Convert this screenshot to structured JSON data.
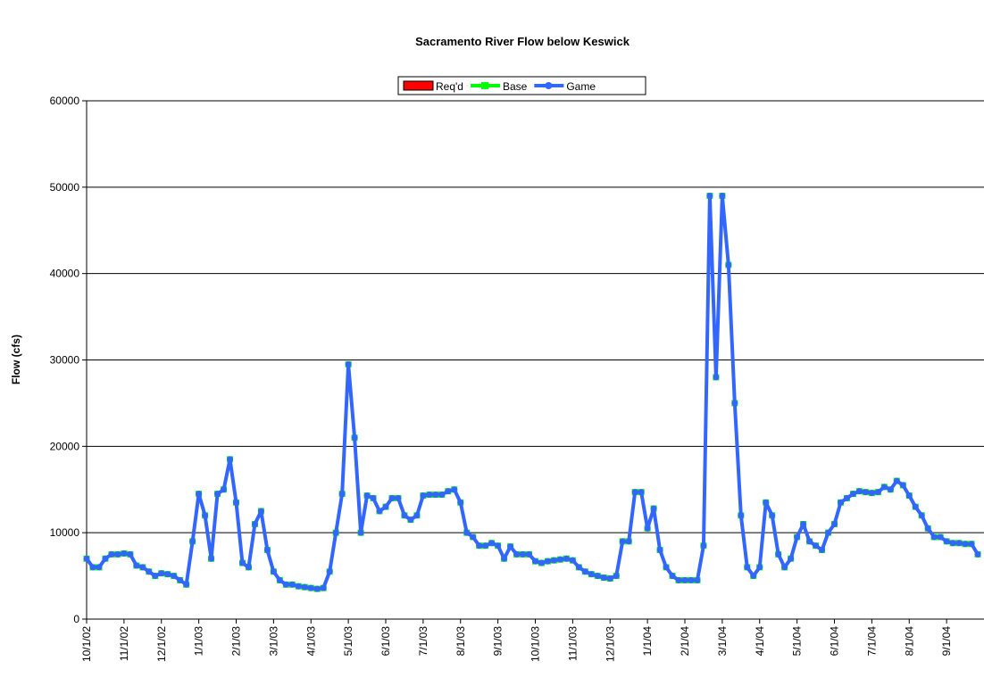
{
  "chart_data": {
    "type": "line",
    "title": "Sacramento River Flow below Keswick",
    "y_label": "Flow (cfs)",
    "ylim": [
      0,
      60000
    ],
    "yticks": [
      0,
      10000,
      20000,
      30000,
      40000,
      50000,
      60000
    ],
    "grid": true,
    "legend": "top",
    "categories": [
      "10/1/02",
      null,
      null,
      null,
      null,
      null,
      "11/1/02",
      null,
      null,
      null,
      null,
      null,
      "12/1/02",
      null,
      null,
      null,
      null,
      null,
      "1/1/03",
      null,
      null,
      null,
      null,
      null,
      "2/1/03",
      null,
      null,
      null,
      null,
      null,
      "3/1/03",
      null,
      null,
      null,
      null,
      null,
      "4/1/03",
      null,
      null,
      null,
      null,
      null,
      "5/1/03",
      null,
      null,
      null,
      null,
      null,
      "6/1/03",
      null,
      null,
      null,
      null,
      null,
      "7/1/03",
      null,
      null,
      null,
      null,
      null,
      "8/1/03",
      null,
      null,
      null,
      null,
      null,
      "9/1/03",
      null,
      null,
      null,
      null,
      null,
      "10/1/03",
      null,
      null,
      null,
      null,
      null,
      "11/1/03",
      null,
      null,
      null,
      null,
      null,
      "12/1/03",
      null,
      null,
      null,
      null,
      null,
      "1/1/04",
      null,
      null,
      null,
      null,
      null,
      "2/1/04",
      null,
      null,
      null,
      null,
      null,
      "3/1/04",
      null,
      null,
      null,
      null,
      null,
      "4/1/04",
      null,
      null,
      null,
      null,
      null,
      "5/1/04",
      null,
      null,
      null,
      null,
      null,
      "6/1/04",
      null,
      null,
      null,
      null,
      null,
      "7/1/04",
      null,
      null,
      null,
      null,
      null,
      "8/1/04",
      null,
      null,
      null,
      null,
      null,
      "9/1/04",
      null,
      null,
      null,
      null,
      null
    ],
    "series": [
      {
        "name": "Req'd",
        "color": "#ff0000",
        "marker": "rect",
        "values": [
          null,
          null,
          null,
          null,
          null,
          null,
          null,
          null,
          null,
          null,
          null,
          null,
          null,
          null,
          null,
          null,
          null,
          null,
          null,
          null,
          null,
          null,
          null,
          null,
          null,
          null,
          null,
          null,
          null,
          null,
          null,
          null,
          null,
          null,
          null,
          null,
          null,
          null,
          null,
          null,
          null,
          null,
          null,
          null,
          null,
          null,
          null,
          null,
          null,
          null,
          null,
          null,
          null,
          null,
          null,
          null,
          null,
          null,
          null,
          null,
          null,
          null,
          null,
          null,
          null,
          null,
          null,
          null,
          null,
          null,
          null,
          null,
          null,
          null,
          null,
          null,
          null,
          null,
          null,
          null,
          null,
          null,
          null,
          null,
          null,
          null,
          null,
          null,
          null,
          null,
          null,
          null,
          null,
          null,
          null,
          null,
          null,
          null,
          null,
          null,
          null,
          null,
          null,
          null,
          null,
          null,
          null,
          null,
          null,
          null,
          null,
          null,
          null,
          null,
          null,
          null,
          null,
          null,
          null,
          null,
          null,
          null,
          null,
          null,
          null,
          null,
          null,
          null,
          null,
          null,
          null,
          null,
          null,
          null,
          null,
          null,
          null,
          null,
          null,
          null,
          null,
          null,
          null,
          null
        ]
      },
      {
        "name": "Base",
        "color": "#00ff00",
        "marker": "square",
        "values": [
          7000,
          6000,
          6000,
          7000,
          7500,
          7500,
          7600,
          7500,
          6200,
          6000,
          5500,
          5000,
          5300,
          5200,
          5000,
          4500,
          4000,
          9000,
          14500,
          12000,
          7000,
          14500,
          15000,
          18500,
          13500,
          6500,
          6000,
          11000,
          12500,
          8000,
          5500,
          4500,
          4000,
          4000,
          3800,
          3700,
          3600,
          3500,
          3600,
          5500,
          10000,
          14500,
          29500,
          21000,
          10000,
          14300,
          14000,
          12500,
          13000,
          14000,
          14000,
          12000,
          11500,
          12000,
          14300,
          14400,
          14400,
          14400,
          14800,
          15000,
          13500,
          10000,
          9500,
          8500,
          8500,
          8800,
          8500,
          7000,
          8400,
          7500,
          7500,
          7500,
          6700,
          6500,
          6700,
          6800,
          6900,
          7000,
          6800,
          6000,
          5500,
          5200,
          5000,
          4800,
          4700,
          5000,
          9000,
          9000,
          14700,
          14700,
          10500,
          12800,
          8000,
          6000,
          5000,
          4500,
          4500,
          4500,
          4500,
          8500,
          49000,
          28000,
          49000,
          41000,
          25000,
          12000,
          6000,
          5000,
          6000,
          13500,
          12000,
          7500,
          6000,
          7000,
          9500,
          11000,
          9000,
          8500,
          8000,
          10000,
          11000,
          13500,
          14000,
          14500,
          14800,
          14700,
          14600,
          14700,
          15300,
          15000,
          16000,
          15500,
          14300,
          13000,
          12000,
          10500,
          9500,
          9500,
          9000,
          8800,
          8800,
          8700,
          8700,
          7500
        ]
      },
      {
        "name": "Game",
        "color": "#3366ff",
        "marker": "circle",
        "values": [
          7000,
          6000,
          6000,
          7000,
          7500,
          7500,
          7600,
          7500,
          6200,
          6000,
          5500,
          5000,
          5300,
          5200,
          5000,
          4500,
          4000,
          9000,
          14500,
          12000,
          7000,
          14500,
          15000,
          18500,
          13500,
          6500,
          6000,
          11000,
          12500,
          8000,
          5500,
          4500,
          4000,
          4000,
          3800,
          3700,
          3600,
          3500,
          3600,
          5500,
          10000,
          14500,
          29500,
          21000,
          10000,
          14300,
          14000,
          12500,
          13000,
          14000,
          14000,
          12000,
          11500,
          12000,
          14300,
          14400,
          14400,
          14400,
          14800,
          15000,
          13500,
          10000,
          9500,
          8500,
          8500,
          8800,
          8500,
          7000,
          8400,
          7500,
          7500,
          7500,
          6700,
          6500,
          6700,
          6800,
          6900,
          7000,
          6800,
          6000,
          5500,
          5200,
          5000,
          4800,
          4700,
          5000,
          9000,
          9000,
          14700,
          14700,
          10500,
          12800,
          8000,
          6000,
          5000,
          4500,
          4500,
          4500,
          4500,
          8500,
          49000,
          28000,
          49000,
          41000,
          25000,
          12000,
          6000,
          5000,
          6000,
          13500,
          12000,
          7500,
          6000,
          7000,
          9500,
          11000,
          9000,
          8500,
          8000,
          10000,
          11000,
          13500,
          14000,
          14500,
          14800,
          14700,
          14600,
          14700,
          15300,
          15000,
          16000,
          15500,
          14300,
          13000,
          12000,
          10500,
          9500,
          9500,
          9000,
          8800,
          8800,
          8700,
          8700,
          7500
        ]
      }
    ]
  }
}
